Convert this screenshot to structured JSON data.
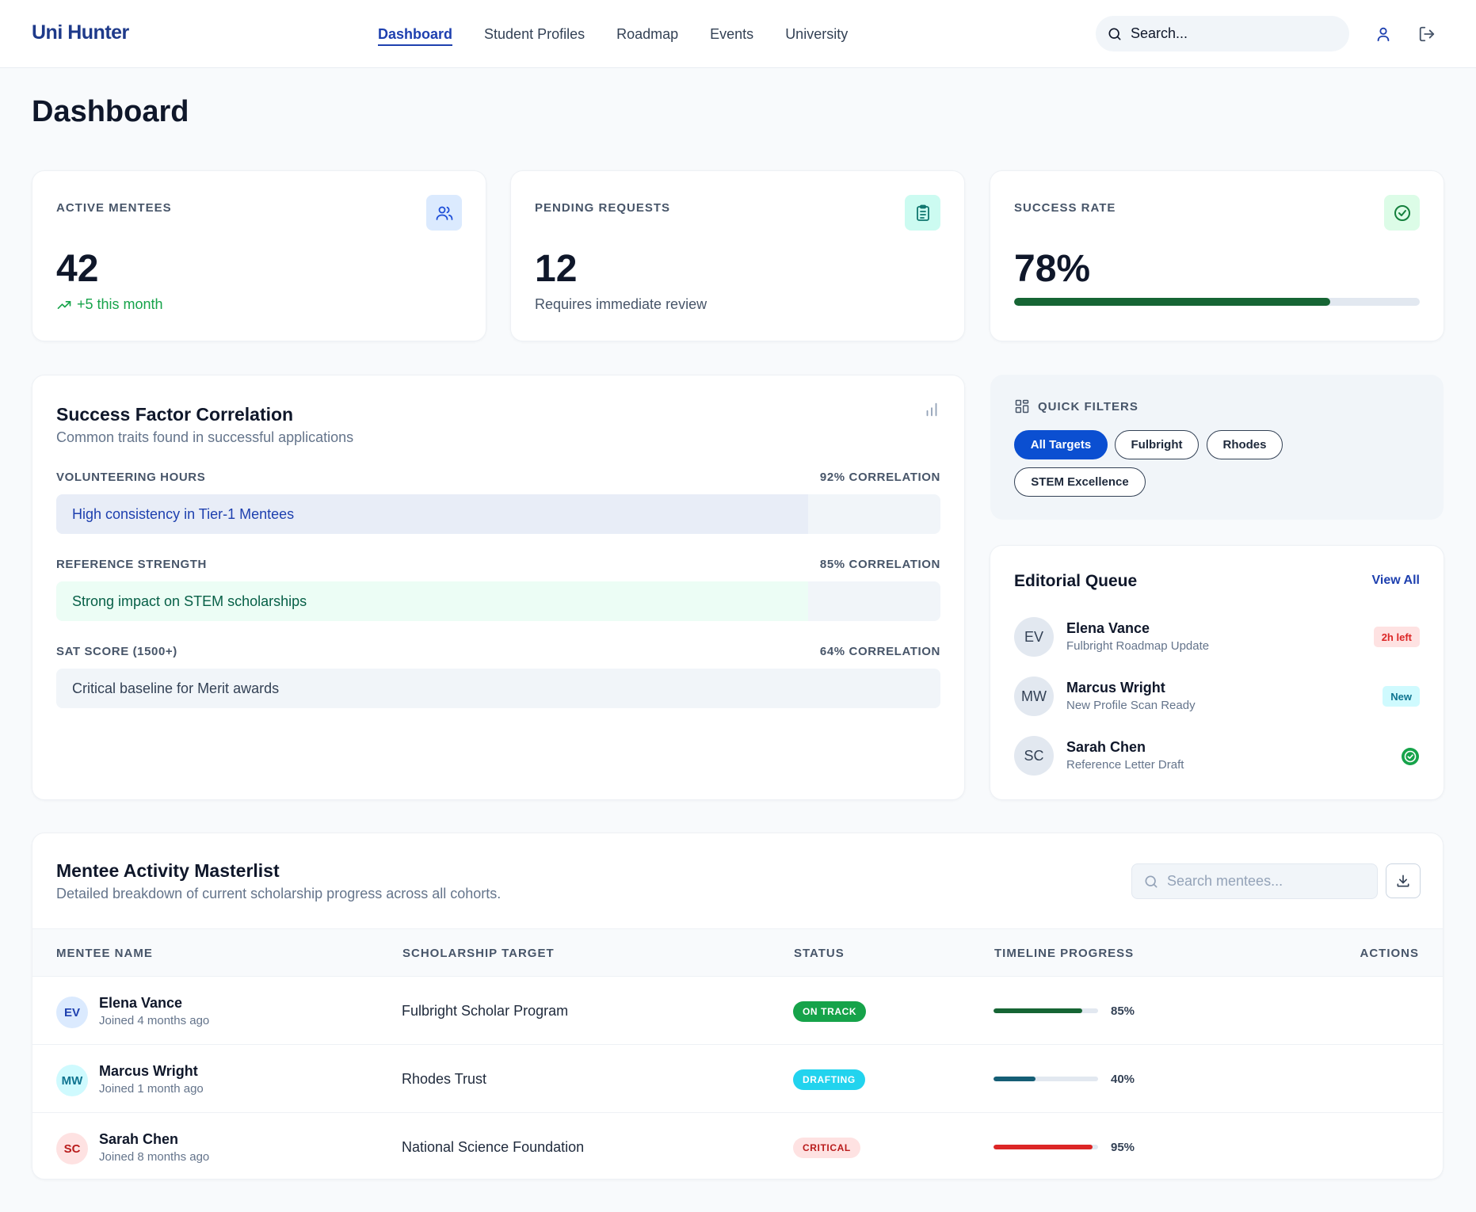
{
  "header": {
    "logo": "Uni Hunter",
    "nav": [
      {
        "label": "Dashboard",
        "active": true
      },
      {
        "label": "Student Profiles",
        "active": false
      },
      {
        "label": "Roadmap",
        "active": false
      },
      {
        "label": "Events",
        "active": false
      },
      {
        "label": "University",
        "active": false
      }
    ],
    "search_placeholder": "Search...",
    "icons": {
      "search": "search-icon",
      "profile": "user-icon",
      "logout": "logout-icon"
    }
  },
  "page": {
    "title": "Dashboard"
  },
  "stats": {
    "active_mentees": {
      "label": "ACTIVE MENTEES",
      "value": "42",
      "sub": "+5 this month",
      "icon": "users-icon"
    },
    "pending_requests": {
      "label": "PENDING REQUESTS",
      "value": "12",
      "sub": "Requires immediate review",
      "icon": "clipboard-icon"
    },
    "success_rate": {
      "label": "SUCCESS RATE",
      "value": "78%",
      "progress": 0.78,
      "icon": "check-circle-icon"
    }
  },
  "correlation": {
    "title": "Success Factor Correlation",
    "subtitle": "Common traits found in successful applications",
    "icon": "bar-chart-icon",
    "items": [
      {
        "label": "VOLUNTEERING HOURS",
        "value": "92% CORRELATION",
        "note": "High consistency in Tier-1 Mentees",
        "fill": "#e8edf7",
        "text_color": "#1e40af"
      },
      {
        "label": "REFERENCE STRENGTH",
        "value": "85% CORRELATION",
        "note": "Strong impact on STEM scholarships",
        "fill": "#ecfdf5",
        "text_color": "#065f46"
      },
      {
        "label": "SAT SCORE (1500+)",
        "value": "64% CORRELATION",
        "note": "Critical baseline for Merit awards",
        "fill": "#f1f5f9",
        "text_color": "#334155"
      }
    ]
  },
  "quick_filters": {
    "title": "QUICK FILTERS",
    "icon": "grid-icon",
    "chips": [
      {
        "label": "All Targets",
        "active": true
      },
      {
        "label": "Fulbright",
        "active": false
      },
      {
        "label": "Rhodes",
        "active": false
      },
      {
        "label": "STEM Excellence",
        "active": false
      }
    ]
  },
  "editorial_queue": {
    "title": "Editorial Queue",
    "view_all": "View All",
    "items": [
      {
        "initials": "EV",
        "name": "Elena Vance",
        "desc": "Fulbright Roadmap Update",
        "badge": "2h left",
        "badge_bg": "#fee2e2",
        "badge_color": "#dc2626"
      },
      {
        "initials": "MW",
        "name": "Marcus Wright",
        "desc": "New Profile Scan Ready",
        "badge": "New",
        "badge_bg": "#cffafe",
        "badge_color": "#0e7490"
      },
      {
        "initials": "SC",
        "name": "Sarah Chen",
        "desc": "Reference Letter Draft",
        "badge": "",
        "status_icon": "check-circle-icon"
      }
    ]
  },
  "masterlist": {
    "title": "Mentee Activity Masterlist",
    "subtitle": "Detailed breakdown of current scholarship progress across all cohorts.",
    "search_placeholder": "Search mentees...",
    "download_icon": "download-icon",
    "columns": [
      "MENTEE NAME",
      "SCHOLARSHIP TARGET",
      "STATUS",
      "TIMELINE PROGRESS",
      "ACTIONS"
    ],
    "rows": [
      {
        "initials": "EV",
        "name": "Elena Vance",
        "joined": "Joined 4 months ago",
        "target": "Fulbright Scholar Program",
        "status": "ON TRACK",
        "progress": 0.85,
        "progress_label": "85%",
        "avatar_bg": "#dbeafe",
        "avatar_color": "#1e40af",
        "status_bg": "#16a34a",
        "status_color": "#ffffff",
        "bar_color": "#166534"
      },
      {
        "initials": "MW",
        "name": "Marcus Wright",
        "joined": "Joined 1 month ago",
        "target": "Rhodes Trust",
        "status": "DRAFTING",
        "progress": 0.4,
        "progress_label": "40%",
        "avatar_bg": "#cffafe",
        "avatar_color": "#0e7490",
        "status_bg": "#22d3ee",
        "status_color": "#ffffff",
        "bar_color": "#155e75"
      },
      {
        "initials": "SC",
        "name": "Sarah Chen",
        "joined": "Joined 8 months ago",
        "target": "National Science Foundation",
        "status": "CRITICAL",
        "progress": 0.95,
        "progress_label": "95%",
        "avatar_bg": "#fee2e2",
        "avatar_color": "#b91c1c",
        "status_bg": "#fee2e2",
        "status_color": "#b91c1c",
        "bar_color": "#dc2626"
      }
    ]
  }
}
